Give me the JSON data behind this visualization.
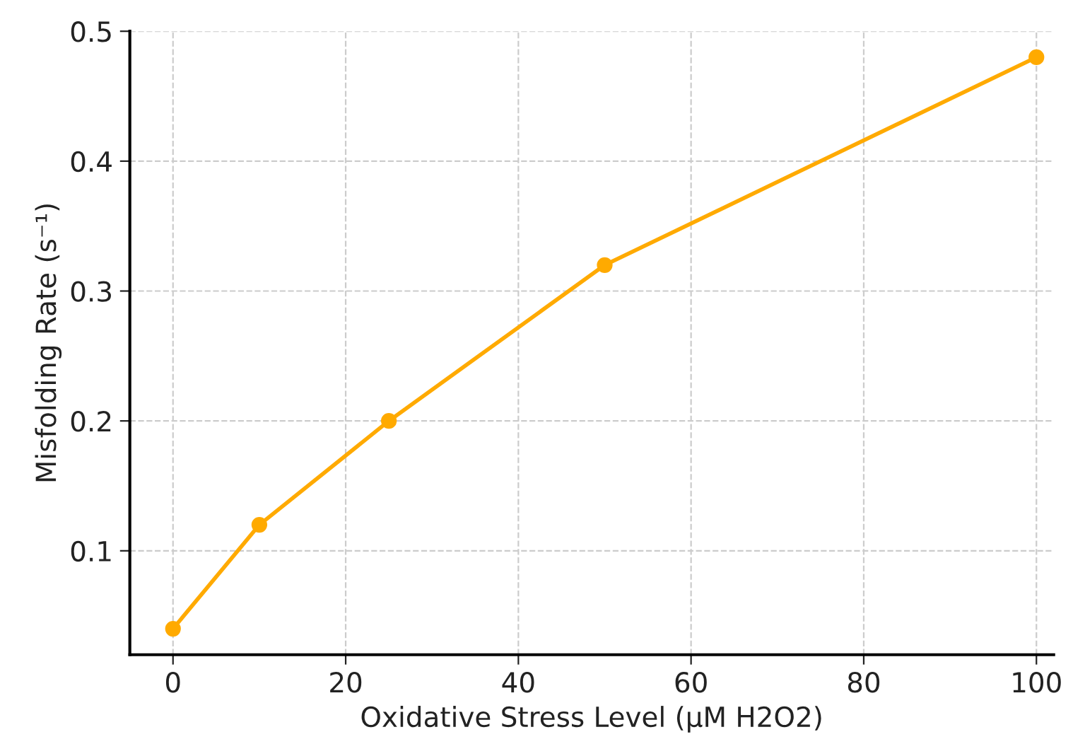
{
  "chart_data": {
    "type": "line",
    "xlabel": "Oxidative Stress Level (µM H2O2)",
    "ylabel": "Misfolding Rate (s⁻¹)",
    "x": [
      0,
      10,
      25,
      50,
      100
    ],
    "series": [
      {
        "color": "#ffaa00",
        "values": [
          0.04,
          0.12,
          0.2,
          0.32,
          0.48
        ]
      }
    ],
    "xlim": [
      -5,
      102
    ],
    "ylim": [
      0.02,
      0.5
    ],
    "xticks": [
      0,
      20,
      40,
      60,
      80,
      100
    ],
    "yticks": [
      0.1,
      0.2,
      0.3,
      0.4,
      0.5
    ],
    "grid": true,
    "marker": "circle",
    "line_style": "solid"
  }
}
